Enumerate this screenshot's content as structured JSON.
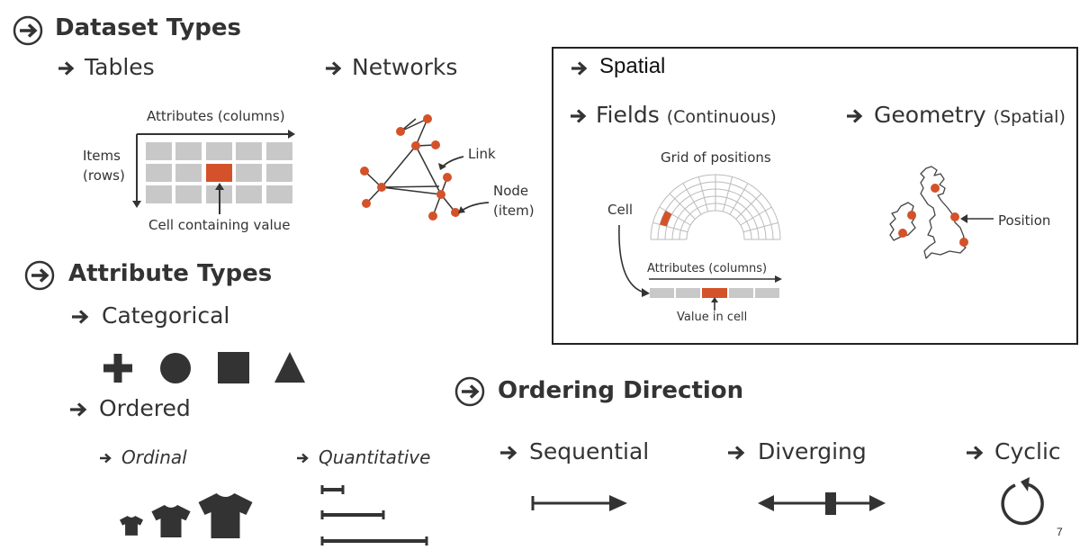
{
  "colors": {
    "accent": "#d4522a",
    "dark": "#333333",
    "grid": "#c8c8c8",
    "frame": "#222222"
  },
  "dataset_types": {
    "title": "Dataset Types",
    "tables": {
      "title": "Tables",
      "attributes_label": "Attributes (columns)",
      "items_label_1": "Items",
      "items_label_2": "(rows)",
      "cell_label": "Cell containing value"
    },
    "networks": {
      "title": "Networks",
      "link_label": "Link",
      "node_label_1": "Node",
      "node_label_2": "(item)"
    },
    "spatial": {
      "title": "Spatial",
      "fields": {
        "title": "Fields",
        "paren": "(Continuous)",
        "grid_label": "Grid of positions",
        "cell_label": "Cell",
        "attributes_label": "Attributes (columns)",
        "value_label": "Value in cell"
      },
      "geometry": {
        "title": "Geometry",
        "paren": "(Spatial)",
        "position_label": "Position"
      }
    }
  },
  "attribute_types": {
    "title": "Attribute Types",
    "categorical": {
      "title": "Categorical",
      "icons": [
        "plus-icon",
        "circle-icon",
        "square-icon",
        "triangle-icon"
      ]
    },
    "ordered": {
      "title": "Ordered",
      "ordinal": {
        "title": "Ordinal",
        "icons": [
          "tshirt-small-icon",
          "tshirt-medium-icon",
          "tshirt-large-icon"
        ]
      },
      "quantitative": {
        "title": "Quantitative",
        "icons": [
          "short-bar-icon",
          "medium-bar-icon",
          "long-bar-icon"
        ]
      }
    }
  },
  "ordering_direction": {
    "title": "Ordering Direction",
    "sequential": {
      "title": "Sequential",
      "icon": "sequential-arrow-icon"
    },
    "diverging": {
      "title": "Diverging",
      "icon": "diverging-arrow-icon"
    },
    "cyclic": {
      "title": "Cyclic",
      "icon": "cyclic-arrow-icon"
    }
  },
  "page_number": "7"
}
